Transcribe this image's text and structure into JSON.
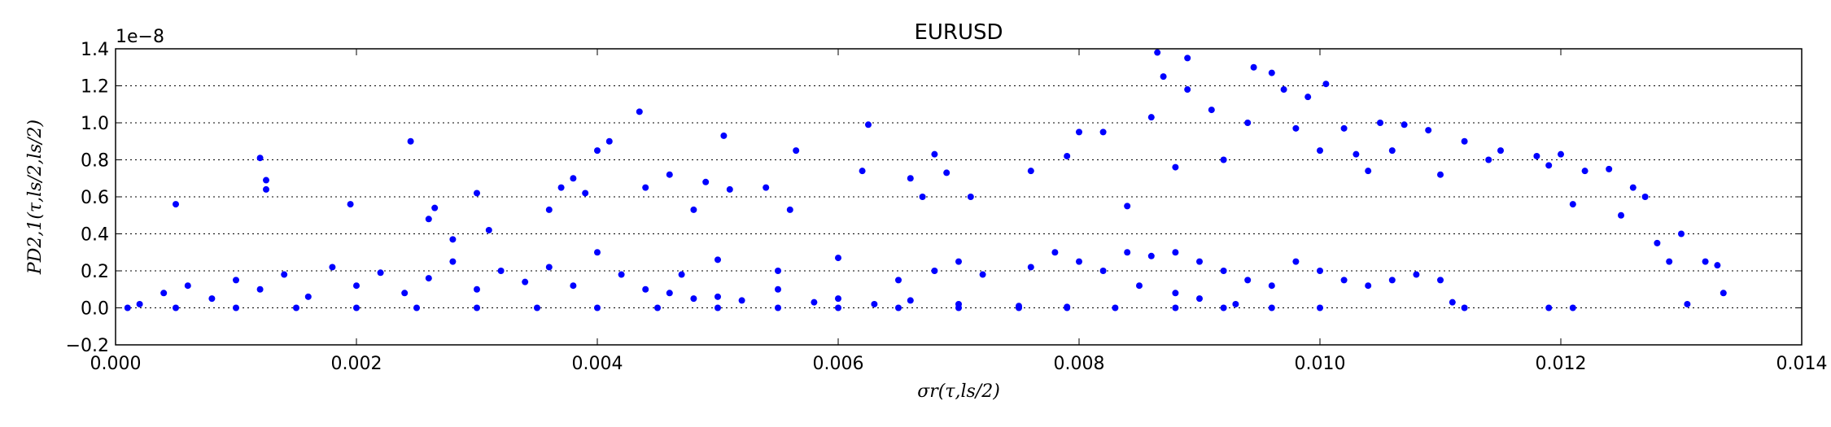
{
  "chart_data": {
    "type": "scatter",
    "title": "EURUSD",
    "x_label": "σr(τ,ls/2)",
    "y_label": "PD2,1(τ,ls/2,ls/2)",
    "y_offset_label": "1e−8",
    "xlim": [
      0,
      0.014
    ],
    "ylim": [
      -0.2,
      1.4
    ],
    "xticks": [
      {
        "value": 0,
        "label": "0.000"
      },
      {
        "value": 0.002,
        "label": "0.002"
      },
      {
        "value": 0.004,
        "label": "0.004"
      },
      {
        "value": 0.006,
        "label": "0.006"
      },
      {
        "value": 0.008,
        "label": "0.008"
      },
      {
        "value": 0.01,
        "label": "0.010"
      },
      {
        "value": 0.012,
        "label": "0.012"
      },
      {
        "value": 0.014,
        "label": "0.014"
      }
    ],
    "yticks": [
      {
        "value": -0.2,
        "label": "−0.2"
      },
      {
        "value": 0,
        "label": "0.0"
      },
      0.2,
      0.4,
      0.6,
      0.8,
      {
        "value": 1,
        "label": "1.0"
      },
      1.2,
      1.4
    ],
    "grid": true,
    "series": [
      {
        "color": "#0000ff",
        "x": [
          0.0002,
          0.0004,
          0.0006,
          0.0008,
          0.001,
          0.0012,
          0.0014,
          0.0016,
          0.0018,
          0.002,
          0.0022,
          0.0024,
          0.0026,
          0.0028,
          0.003,
          0.0032,
          0.0034,
          0.0036,
          0.0038,
          0.004,
          0.0042,
          0.0044,
          0.0046,
          0.0048,
          0.005,
          0.0052,
          0.0055,
          0.0058,
          0.006,
          0.0063,
          0.0066,
          0.007,
          0.0075,
          0.0079,
          0.0001,
          0.0005,
          0.001,
          0.0015,
          0.002,
          0.0025,
          0.003,
          0.0035,
          0.004,
          0.0045,
          0.005,
          0.0055,
          0.006,
          0.0065,
          0.007,
          0.0075,
          0.0079,
          0.0083,
          0.0088,
          0.0092,
          0.0096,
          0.01,
          0.0012,
          0.00125,
          0.00125,
          0.0005,
          0.00195,
          0.00245,
          0.0026,
          0.00265,
          0.0028,
          0.003,
          0.0031,
          0.0036,
          0.0037,
          0.0038,
          0.0039,
          0.004,
          0.0041,
          0.00435,
          0.0044,
          0.0046,
          0.0048,
          0.0049,
          0.00505,
          0.0051,
          0.0054,
          0.0056,
          0.00565,
          0.0062,
          0.00625,
          0.0066,
          0.0067,
          0.0068,
          0.0069,
          0.0071,
          0.0076,
          0.0079,
          0.008,
          0.0082,
          0.0084,
          0.0086,
          0.00865,
          0.0087,
          0.0089,
          0.0088,
          0.0089,
          0.0091,
          0.0092,
          0.0094,
          0.00945,
          0.0096,
          0.0097,
          0.0098,
          0.0099,
          0.01,
          0.01005,
          0.0102,
          0.0103,
          0.0104,
          0.0105,
          0.0106,
          0.0107,
          0.0109,
          0.011,
          0.0112,
          0.0114,
          0.0115,
          0.0118,
          0.0119,
          0.012,
          0.0121,
          0.0122,
          0.0124,
          0.0125,
          0.0126,
          0.0127,
          0.0128,
          0.0129,
          0.013,
          0.01305,
          0.0132,
          0.0133,
          0.01335,
          0.0119,
          0.0121,
          0.0111,
          0.0112,
          0.0076,
          0.0078,
          0.008,
          0.0082,
          0.0084,
          0.0086,
          0.0088,
          0.009,
          0.0092,
          0.0094,
          0.0096,
          0.0098,
          0.01,
          0.0102,
          0.0104,
          0.0106,
          0.0108,
          0.011,
          0.0085,
          0.0088,
          0.009,
          0.0093,
          0.0065,
          0.0068,
          0.007,
          0.0072,
          0.006,
          0.0055,
          0.005,
          0.0047
        ],
        "values": [
          0.02,
          0.08,
          0.12,
          0.05,
          0.15,
          0.1,
          0.18,
          0.06,
          0.22,
          0.12,
          0.19,
          0.08,
          0.16,
          0.25,
          0.1,
          0.2,
          0.14,
          0.22,
          0.12,
          0.3,
          0.18,
          0.1,
          0.08,
          0.05,
          0.06,
          0.04,
          0.1,
          0.03,
          0.05,
          0.02,
          0.04,
          0.02,
          0.01,
          0.005,
          0,
          0,
          0,
          0,
          0,
          0,
          0,
          0,
          0,
          0,
          0,
          0,
          0,
          0,
          0,
          0,
          0,
          0,
          0,
          0,
          0,
          0,
          0.81,
          0.69,
          0.64,
          0.56,
          0.56,
          0.9,
          0.48,
          0.54,
          0.37,
          0.62,
          0.42,
          0.53,
          0.65,
          0.7,
          0.62,
          0.85,
          0.9,
          1.06,
          0.65,
          0.72,
          0.53,
          0.68,
          0.93,
          0.64,
          0.65,
          0.53,
          0.85,
          0.74,
          0.99,
          0.7,
          0.6,
          0.83,
          0.73,
          0.6,
          0.74,
          0.82,
          0.95,
          0.95,
          0.55,
          1.03,
          1.38,
          1.25,
          1.35,
          0.76,
          1.18,
          1.07,
          0.8,
          1.0,
          1.3,
          1.27,
          1.18,
          0.97,
          1.14,
          0.85,
          1.21,
          0.97,
          0.83,
          0.74,
          1.0,
          0.85,
          0.99,
          0.96,
          0.72,
          0.9,
          0.8,
          0.85,
          0.82,
          0.77,
          0.83,
          0.56,
          0.74,
          0.75,
          0.5,
          0.65,
          0.6,
          0.35,
          0.25,
          0.4,
          0.02,
          0.25,
          0.23,
          0.08,
          0,
          0,
          0.03,
          0,
          0.22,
          0.3,
          0.25,
          0.2,
          0.3,
          0.28,
          0.3,
          0.25,
          0.2,
          0.15,
          0.12,
          0.25,
          0.2,
          0.15,
          0.12,
          0.15,
          0.18,
          0.15,
          0.12,
          0.08,
          0.05,
          0.02,
          0.15,
          0.2,
          0.25,
          0.18,
          0.27,
          0.2,
          0.26,
          0.18
        ]
      }
    ]
  }
}
